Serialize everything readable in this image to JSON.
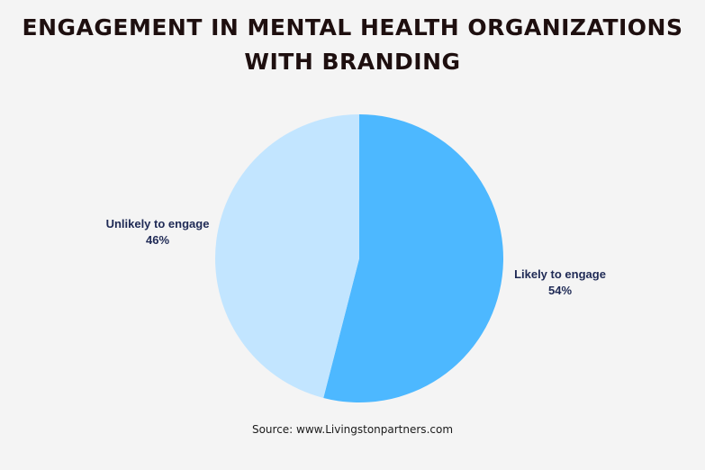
{
  "chart_data": {
    "type": "pie",
    "title": "ENGAGEMENT IN MENTAL HEALTH ORGANIZATIONS WITH BRANDING",
    "title_lines": [
      "ENGAGEMENT IN MENTAL HEALTH ORGANIZATIONS",
      "WITH BRANDING"
    ],
    "categories": [
      "Likely to engage",
      "Unlikely to engage"
    ],
    "values": [
      54,
      46
    ],
    "value_labels": [
      "54%",
      "46%"
    ],
    "colors": [
      "#4db8ff",
      "#c2e5ff"
    ],
    "legend": "none (direct labels)",
    "source": "Source: www.Livingstonpartners.com"
  },
  "labels": {
    "likely": {
      "name": "Likely to engage",
      "pct": "54%"
    },
    "unlikely": {
      "name": "Unlikely to engage",
      "pct": "46%"
    }
  }
}
